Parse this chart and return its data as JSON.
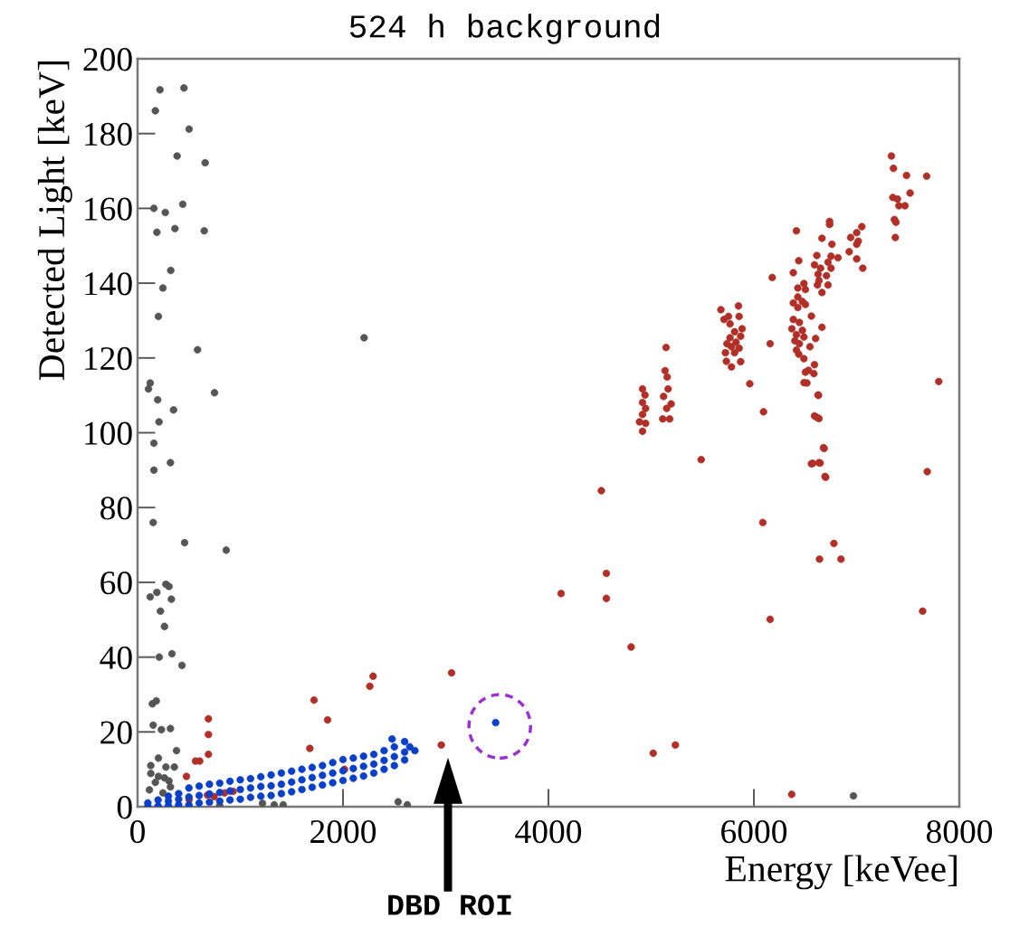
{
  "chart_data": {
    "type": "scatter",
    "title": "524 h background",
    "xlabel": "Energy [keVee]",
    "ylabel": "Detected Light [keV]",
    "xlim": [
      0,
      8000
    ],
    "ylim": [
      0,
      200
    ],
    "xticks": [
      0,
      2000,
      4000,
      6000,
      8000
    ],
    "yticks": [
      0,
      20,
      40,
      60,
      80,
      100,
      120,
      140,
      160,
      180,
      200
    ],
    "marker": "circle",
    "annotations": [
      "DBD ROI"
    ],
    "series": [
      {
        "color": "#555555",
        "x": [
          218,
          452,
          173,
          502,
          385,
          658,
          159,
          270,
          440,
          188,
          364,
          649,
          323,
          247,
          203,
          2205,
          584,
          123,
          106,
          749,
          196,
          350,
          209,
          159,
          320,
          159,
          152,
          458,
          863,
          276,
          306,
          188,
          123,
          329,
          223,
          262,
          335,
          211,
          432,
          182,
          144,
          152,
          232,
          320,
          379,
          203,
          129,
          276,
          358,
          129,
          203,
          262,
          306,
          173,
          320,
          115,
          247,
          1216,
          1330,
          1418,
          2537,
          2626,
          800,
          6969
        ],
        "values": [
          191.7,
          192.2,
          186.1,
          181.2,
          174,
          172.2,
          160,
          158.9,
          161.1,
          153.6,
          154.6,
          154,
          143.4,
          138.7,
          131.1,
          125.4,
          122.2,
          113.3,
          111.7,
          110.7,
          108.8,
          106.1,
          102.9,
          97.2,
          92,
          90,
          76,
          70.6,
          68.6,
          59.5,
          58.9,
          57.3,
          56.1,
          55.5,
          52.3,
          48.2,
          40.9,
          40,
          37.8,
          28.3,
          27.5,
          21.8,
          20.6,
          20.9,
          15,
          13,
          11,
          10.6,
          10.6,
          8.9,
          8.1,
          7.7,
          6.9,
          6.5,
          5.3,
          4.5,
          3.7,
          0.9,
          0.5,
          0.5,
          1.3,
          0.5,
          0.3,
          2.9
        ]
      },
      {
        "color": "#b03028",
        "x": [
          2293,
          2261,
          1718,
          1850,
          690,
          690,
          690,
          564,
          605,
          1677,
          476,
          2015,
          502,
          681,
          745,
          848,
          930,
          3057,
          2957,
          4805,
          5020,
          5236,
          6368,
          4123,
          4564,
          4564,
          4515,
          6087,
          6158,
          6779,
          6639,
          6848,
          7643,
          7688,
          5487,
          6094,
          6684,
          6573,
          6645,
          6699,
          6629,
          6613,
          5960,
          6488,
          7339,
          7359,
          7486,
          7682,
          7521,
          7353,
          7397,
          7412,
          7471,
          7368,
          7383,
          7377,
          6737,
          6737,
          6414,
          7051,
          7001,
          6942,
          7016,
          6663,
          7001,
          6760,
          6928,
          6613,
          6751,
          6819,
          7001,
          6437,
          7060,
          6722,
          6590,
          6649,
          6751,
          6384,
          6625,
          6707,
          6179,
          6634,
          6487,
          6619,
          6722,
          6428,
          6502,
          6663,
          6428,
          6472,
          6384,
          6502,
          6428,
          6560,
          6384,
          6443,
          6663,
          6370,
          6472,
          6414,
          6487,
          6601,
          6399,
          6443,
          6546,
          6414,
          6437,
          6487,
          6590,
          6531,
          6502,
          6584,
          6516,
          6625,
          6590,
          6634,
          6678,
          6560,
          6634,
          6693,
          7800,
          6158,
          5679,
          5850,
          5709,
          5753,
          5856,
          5768,
          5885,
          5812,
          5768,
          5871,
          5738,
          5826,
          5782,
          5856,
          5723,
          5812,
          5732,
          5871,
          5782,
          5145,
          5136,
          5156,
          5165,
          5121,
          5195,
          5151,
          5113,
          5180,
          4916,
          4940,
          4916,
          4946,
          4916,
          4887,
          4946,
          4916
        ],
        "values": [
          34.9,
          32.2,
          28.5,
          23.2,
          23.5,
          19.3,
          14,
          12.2,
          12.2,
          15.6,
          8.1,
          10,
          1.9,
          3.1,
          2.7,
          3.7,
          4.1,
          35.8,
          16.5,
          42.7,
          14.3,
          16.5,
          3.3,
          57,
          62.4,
          55.7,
          84.5,
          76,
          50.1,
          70.4,
          66.2,
          66.2,
          52.3,
          89.6,
          92.8,
          105.6,
          95.8,
          91.8,
          91.9,
          88.1,
          110,
          104.1,
          113.1,
          113.4,
          174,
          170.7,
          168.8,
          168.6,
          164.1,
          162.9,
          162.5,
          160.7,
          160.7,
          157,
          156.3,
          152.2,
          156.5,
          155.7,
          154,
          155.1,
          153.5,
          152.2,
          151.2,
          152,
          150.4,
          150.4,
          148.4,
          147.4,
          147.2,
          146.8,
          146.5,
          146,
          144,
          145.6,
          144.9,
          144,
          144,
          142.8,
          142.4,
          142,
          141.5,
          140.7,
          139.9,
          139.5,
          139.5,
          138.7,
          138.3,
          137.5,
          136.3,
          135.1,
          134.7,
          134.3,
          133.5,
          131.2,
          130.3,
          129.5,
          128.2,
          127.8,
          127.4,
          126.2,
          125.6,
          125.2,
          124.6,
          123.8,
          123,
          122.1,
          121,
          119.8,
          118.2,
          116.7,
          116.2,
          115.8,
          113.3,
          110.1,
          104.5,
          103.8,
          96,
          91.7,
          92,
          88.3,
          113.7,
          123.8,
          132.9,
          133.9,
          130.3,
          131.1,
          131.1,
          129.1,
          127.8,
          127,
          125.4,
          125.8,
          123.8,
          124.2,
          123,
          122.6,
          121.4,
          121.4,
          119.1,
          119,
          117.6,
          122.8,
          116.6,
          114.9,
          111.7,
          109.7,
          107.7,
          106.5,
          103.7,
          103.7,
          111.7,
          110.1,
          108.1,
          106.5,
          104.9,
          102.9,
          102.5,
          100.4
        ]
      },
      {
        "color": "#0a3fc8",
        "x": [
          100,
          100,
          200,
          200,
          300,
          300,
          300,
          400,
          400,
          400,
          500,
          500,
          500,
          600,
          600,
          600,
          700,
          700,
          700,
          800,
          800,
          800,
          900,
          900,
          900,
          1000,
          1000,
          1000,
          1100,
          1100,
          1100,
          1200,
          1200,
          1200,
          1300,
          1300,
          1300,
          1400,
          1400,
          1400,
          1500,
          1500,
          1500,
          1600,
          1600,
          1600,
          1700,
          1700,
          1700,
          1800,
          1800,
          1800,
          1900,
          1900,
          1900,
          2000,
          2000,
          2000,
          2100,
          2100,
          2100,
          2200,
          2200,
          2200,
          2300,
          2300,
          2300,
          2400,
          2400,
          2400,
          2500,
          2500,
          2500,
          2600,
          2600,
          2600,
          2478,
          2650,
          2700,
          3486
        ],
        "values": [
          0,
          1,
          0.2,
          1.8,
          0.3,
          1.5,
          2.8,
          0.5,
          2,
          3.5,
          0.5,
          2.6,
          5,
          1,
          3,
          5.5,
          1.2,
          3.4,
          6,
          1.5,
          3.8,
          6.3,
          1.8,
          4.2,
          6.8,
          2,
          4.6,
          7.2,
          2.5,
          5,
          7.5,
          2.8,
          5.4,
          8,
          3,
          5.6,
          8.5,
          3.5,
          6,
          9,
          4,
          6.6,
          9.5,
          4.6,
          7.2,
          10,
          5.2,
          7.8,
          10.5,
          5.8,
          8.4,
          11,
          6.4,
          9,
          11.8,
          7,
          9.6,
          12.6,
          7.6,
          10.2,
          13,
          8.2,
          10.8,
          13.5,
          9,
          11.4,
          14,
          10,
          12.4,
          15,
          11,
          13.4,
          16,
          12.5,
          14.6,
          17.4,
          18.1,
          16,
          15,
          22.5
        ]
      }
    ]
  }
}
